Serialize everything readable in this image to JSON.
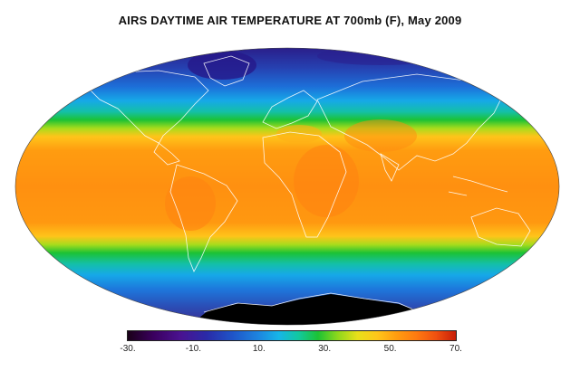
{
  "title": "AIRS DAYTIME AIR TEMPERATURE AT 700mb (F), May 2009",
  "colorbar": {
    "min": -30,
    "max": 70,
    "ticks": [
      "-30.",
      "-10.",
      "10.",
      "30.",
      "50.",
      "70."
    ],
    "tick_values": [
      -30,
      -10,
      10,
      30,
      50,
      70
    ]
  },
  "colors": {
    "polar": "#2a1e8a",
    "cold": "#1d6fd8",
    "cool": "#16b5e8",
    "mild": "#1cc234",
    "warm": "#f0d81a",
    "hot": "#ff9010",
    "antarctica": "#000000",
    "coastline": "#ffffff"
  }
}
